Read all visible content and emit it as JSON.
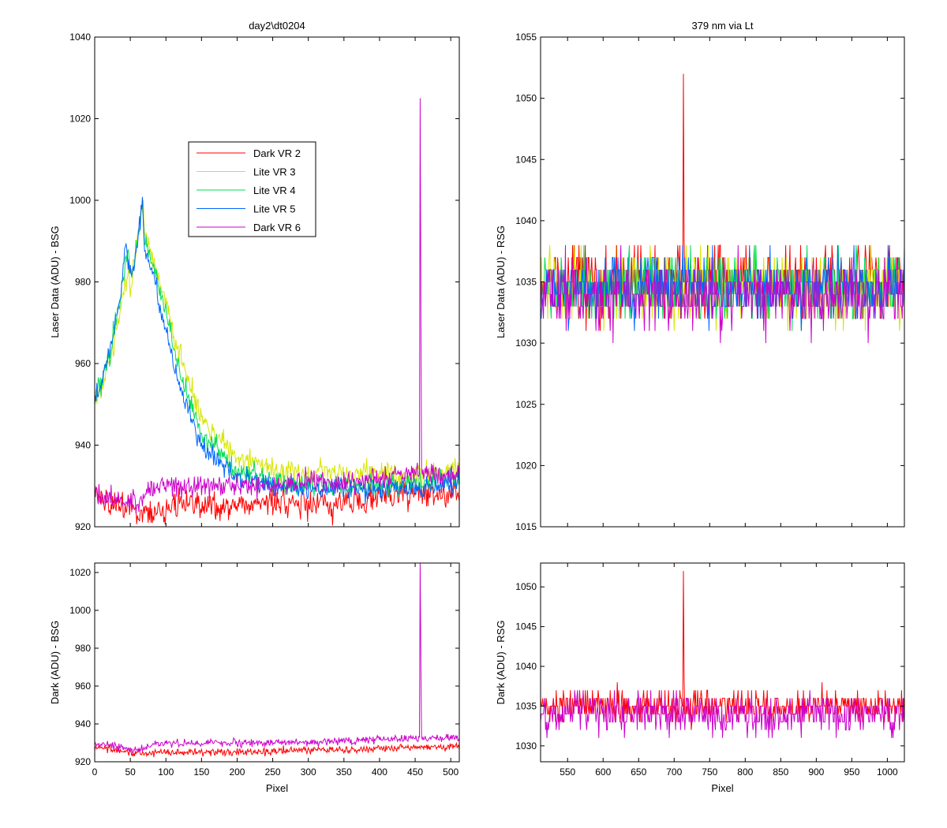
{
  "window": {
    "background": "#ffffff"
  },
  "chart_data": [
    {
      "id": "top-left",
      "type": "line",
      "title": "day2\\dt0204",
      "xlabel": "",
      "ylabel": "Laser Data (ADU) - BSG",
      "xlim": [
        0,
        512
      ],
      "ylim": [
        920,
        1040
      ],
      "yticks": [
        920,
        940,
        960,
        980,
        1000,
        1020,
        1040
      ],
      "xticks": [
        0,
        50,
        100,
        150,
        200,
        250,
        300,
        350,
        400,
        450,
        500
      ],
      "show_x_tick_labels": false,
      "grid": false,
      "legend_position": "upper-center",
      "legend": [
        {
          "label": "Dark VR 2",
          "color": "#ff0000"
        },
        {
          "label": "Lite VR 3",
          "color": "#d6e600"
        },
        {
          "label": "Lite VR 4",
          "color": "#00dd55"
        },
        {
          "label": "Lite VR 5",
          "color": "#0066ff"
        },
        {
          "label": "Dark VR 6",
          "color": "#cc00cc"
        }
      ],
      "series": [
        {
          "name": "Dark VR 2",
          "color": "#ff0000",
          "x": [
            0,
            20,
            40,
            60,
            80,
            100,
            150,
            200,
            250,
            300,
            350,
            400,
            450,
            500,
            512
          ],
          "y": [
            928,
            926,
            925,
            924,
            924,
            925,
            925,
            925,
            926,
            926,
            926,
            927,
            928,
            928,
            928
          ],
          "noise": 2.5
        },
        {
          "name": "Lite VR 3",
          "color": "#d6e600",
          "x": [
            0,
            20,
            35,
            47,
            50,
            57,
            67,
            70,
            80,
            100,
            120,
            150,
            200,
            250,
            300,
            350,
            400,
            450,
            512
          ],
          "y": [
            950,
            960,
            972,
            983,
            978,
            985,
            1000,
            991,
            986,
            975,
            962,
            946,
            937,
            934,
            933,
            933,
            933,
            933,
            933
          ],
          "noise": 2.0
        },
        {
          "name": "Lite VR 4",
          "color": "#00dd55",
          "x": [
            0,
            20,
            35,
            47,
            50,
            57,
            67,
            70,
            80,
            100,
            120,
            150,
            200,
            250,
            300,
            350,
            400,
            450,
            512
          ],
          "y": [
            950,
            962,
            974,
            988,
            980,
            985,
            1000,
            990,
            985,
            972,
            957,
            943,
            934,
            931,
            930,
            930,
            930,
            931,
            932
          ],
          "noise": 2.0
        },
        {
          "name": "Lite VR 5",
          "color": "#0066ff",
          "x": [
            0,
            20,
            35,
            44,
            47,
            52,
            60,
            67,
            70,
            80,
            100,
            120,
            150,
            200,
            250,
            300,
            350,
            400,
            450,
            512
          ],
          "y": [
            950,
            962,
            975,
            991,
            984,
            982,
            990,
            1001,
            988,
            983,
            968,
            954,
            940,
            932,
            930,
            929,
            929,
            929,
            930,
            930
          ],
          "noise": 1.8
        },
        {
          "name": "Dark VR 6",
          "color": "#cc00cc",
          "x": [
            0,
            30,
            60,
            80,
            100,
            150,
            200,
            250,
            300,
            350,
            400,
            450,
            500,
            512
          ],
          "y": [
            928,
            927,
            926,
            929,
            930,
            930,
            930,
            930,
            931,
            931,
            932,
            933,
            933,
            933
          ],
          "noise": 1.8,
          "spike": {
            "x": 457,
            "y": 1025
          }
        }
      ]
    },
    {
      "id": "top-right",
      "type": "line",
      "title": "379 nm via Lt",
      "xlabel": "",
      "ylabel": "Laser Data (ADU) - RSG",
      "xlim": [
        512,
        1024
      ],
      "ylim": [
        1015,
        1055
      ],
      "yticks": [
        1015,
        1020,
        1025,
        1030,
        1035,
        1040,
        1045,
        1050,
        1055
      ],
      "xticks": [
        550,
        600,
        650,
        700,
        750,
        800,
        850,
        900,
        950,
        1000
      ],
      "show_x_tick_labels": false,
      "grid": false,
      "series": [
        {
          "name": "Dark VR 2",
          "color": "#ff0000",
          "level": 1035,
          "noise": 2.0,
          "spike": {
            "x": 713,
            "y": 1052
          }
        },
        {
          "name": "Lite VR 3",
          "color": "#d6e600",
          "level": 1034.5,
          "noise": 2.0
        },
        {
          "name": "Lite VR 4",
          "color": "#00dd55",
          "level": 1034.5,
          "noise": 2.0
        },
        {
          "name": "Lite VR 5",
          "color": "#0066ff",
          "level": 1034.5,
          "noise": 1.8
        },
        {
          "name": "Dark VR 6",
          "color": "#cc00cc",
          "level": 1034,
          "noise": 2.0
        }
      ]
    },
    {
      "id": "bottom-left",
      "type": "line",
      "title": "",
      "xlabel": "Pixel",
      "ylabel": "Dark (ADU) - BSG",
      "xlim": [
        0,
        512
      ],
      "ylim": [
        920,
        1025
      ],
      "yticks": [
        920,
        940,
        960,
        980,
        1000,
        1020
      ],
      "xticks": [
        0,
        50,
        100,
        150,
        200,
        250,
        300,
        350,
        400,
        450,
        500
      ],
      "show_x_tick_labels": true,
      "grid": false,
      "series": [
        {
          "name": "Dark VR 2",
          "color": "#ff0000",
          "x": [
            0,
            30,
            60,
            100,
            200,
            300,
            400,
            512
          ],
          "y": [
            928,
            926,
            924,
            925,
            925,
            926,
            927,
            928
          ],
          "noise": 1.5
        },
        {
          "name": "Dark VR 6",
          "color": "#cc00cc",
          "x": [
            0,
            30,
            60,
            80,
            100,
            200,
            300,
            400,
            512
          ],
          "y": [
            929,
            928,
            926,
            929,
            930,
            930,
            930,
            932,
            933
          ],
          "noise": 1.5,
          "spike": {
            "x": 457,
            "y": 1025
          }
        }
      ]
    },
    {
      "id": "bottom-right",
      "type": "line",
      "title": "",
      "xlabel": "Pixel",
      "ylabel": "Dark (ADU) - RSG",
      "xlim": [
        512,
        1024
      ],
      "ylim": [
        1028,
        1053
      ],
      "yticks": [
        1030,
        1035,
        1040,
        1045,
        1050
      ],
      "xticks": [
        550,
        600,
        650,
        700,
        750,
        800,
        850,
        900,
        950,
        1000
      ],
      "show_x_tick_labels": true,
      "grid": false,
      "series": [
        {
          "name": "Dark VR 2",
          "color": "#ff0000",
          "level": 1035,
          "noise": 1.5,
          "spike": {
            "x": 713,
            "y": 1052
          }
        },
        {
          "name": "Dark VR 6",
          "color": "#cc00cc",
          "level": 1034,
          "noise": 1.8
        }
      ]
    }
  ]
}
